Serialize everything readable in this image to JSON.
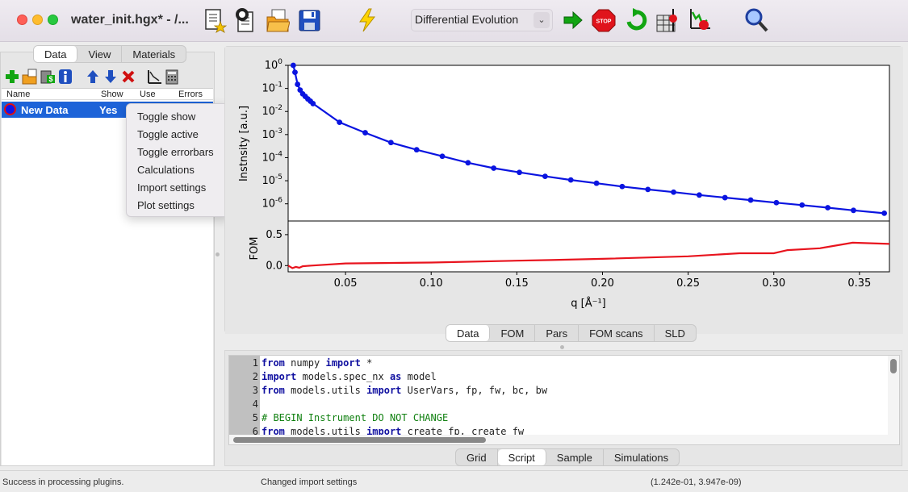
{
  "window": {
    "title": "water_init.hgx* - /..."
  },
  "toolbar": {
    "icons": [
      "new-model-icon",
      "open-model-icon",
      "open-folder-icon",
      "save-icon",
      "simulate-icon",
      "fit-start-icon",
      "stop-icon",
      "restart-fit-icon",
      "calculate-errorbars-icon",
      "scan-parameter-icon",
      "zoom-icon"
    ],
    "algorithm": {
      "selected": "Differential Evolution"
    }
  },
  "left_panel": {
    "tabs": [
      {
        "label": "Data",
        "active": true
      },
      {
        "label": "View"
      },
      {
        "label": "Materials"
      }
    ],
    "data_toolbar_icons": [
      "add-data-icon",
      "import-data-icon",
      "data-calculations-icon",
      "data-info-icon",
      "move-up-icon",
      "move-down-icon",
      "delete-data-icon",
      "plot-settings-icon",
      "calculator-icon"
    ],
    "columns": [
      "Name",
      "Show",
      "Use",
      "Errors"
    ],
    "rows": [
      {
        "name": "New Data",
        "show": "Yes",
        "color": "#1414e6",
        "edge": "#e01010"
      }
    ]
  },
  "context_menu": {
    "items": [
      "Toggle show",
      "Toggle active",
      "Toggle errorbars",
      "Calculations",
      "Import settings",
      "Plot settings"
    ]
  },
  "plot_tabs": [
    {
      "label": "Data",
      "active": true
    },
    {
      "label": "FOM"
    },
    {
      "label": "Pars"
    },
    {
      "label": "FOM scans"
    },
    {
      "label": "SLD"
    }
  ],
  "script": {
    "lines": [
      {
        "n": "1",
        "tokens": [
          [
            "kw",
            "from"
          ],
          [
            "t",
            " numpy "
          ],
          [
            "kw",
            "import"
          ],
          [
            "t",
            " *"
          ]
        ]
      },
      {
        "n": "2",
        "tokens": [
          [
            "kw",
            "import"
          ],
          [
            "t",
            " models.spec_nx "
          ],
          [
            "kw",
            "as"
          ],
          [
            "t",
            " model"
          ]
        ]
      },
      {
        "n": "3",
        "tokens": [
          [
            "kw",
            "from"
          ],
          [
            "t",
            " models.utils "
          ],
          [
            "kw",
            "import"
          ],
          [
            "t",
            " UserVars, fp, fw, bc, bw"
          ]
        ]
      },
      {
        "n": "4",
        "tokens": []
      },
      {
        "n": "5",
        "tokens": [
          [
            "cm",
            "# BEGIN Instrument DO NOT CHANGE"
          ]
        ]
      },
      {
        "n": "6",
        "tokens": [
          [
            "kw",
            "from"
          ],
          [
            "t",
            " models.utils "
          ],
          [
            "kw",
            "import"
          ],
          [
            "t",
            " create_fp, create_fw"
          ]
        ]
      }
    ]
  },
  "script_tabs": [
    {
      "label": "Grid"
    },
    {
      "label": "Script",
      "active": true
    },
    {
      "label": "Sample"
    },
    {
      "label": "Simulations"
    }
  ],
  "status": {
    "left": "Success in processing plugins.",
    "middle": "Changed import settings",
    "right": "(1.242e-01, 3.947e-09)"
  },
  "chart_data": [
    {
      "type": "line",
      "ylabel": "Instnsity [a.u.]",
      "yscale": "log",
      "ylim": [
        1.8e-07,
        1
      ],
      "xlim": [
        0.0165,
        0.3675
      ],
      "ytick_labels": [
        "10^0",
        "10^-1",
        "10^-2",
        "10^-3",
        "10^-4",
        "10^-5",
        "10^-6"
      ],
      "series": [
        {
          "color": "#0a14e0",
          "markers": true,
          "x": [
            0.0195,
            0.0205,
            0.022,
            0.0235,
            0.025,
            0.0265,
            0.028,
            0.0295,
            0.031,
            0.0465,
            0.0615,
            0.0765,
            0.0915,
            0.1065,
            0.1215,
            0.1365,
            0.1515,
            0.1665,
            0.1815,
            0.1965,
            0.2115,
            0.2265,
            0.2415,
            0.2565,
            0.2715,
            0.2865,
            0.3015,
            0.3165,
            0.3315,
            0.3465,
            0.3645
          ],
          "y": [
            1.0,
            0.5,
            0.15,
            0.085,
            0.058,
            0.045,
            0.035,
            0.028,
            0.022,
            0.0034,
            0.0012,
            0.00045,
            0.00022,
            0.000115,
            6e-05,
            3.5e-05,
            2.3e-05,
            1.55e-05,
            1.08e-05,
            7.8e-06,
            5.6e-06,
            4.2e-06,
            3.2e-06,
            2.4e-06,
            1.85e-06,
            1.45e-06,
            1.12e-06,
            8.8e-07,
            6.8e-07,
            5.2e-07,
            3.9e-07
          ]
        }
      ]
    },
    {
      "type": "line",
      "xlabel": "q [Å⁻¹]",
      "ylabel": "FOM",
      "xlim": [
        0.0165,
        0.3675
      ],
      "ylim": [
        -0.1,
        0.72
      ],
      "xtick_labels": [
        "0.05",
        "0.10",
        "0.15",
        "0.20",
        "0.25",
        "0.30",
        "0.35"
      ],
      "ytick_labels": [
        "0.0",
        "0.5"
      ],
      "series": [
        {
          "color": "#e8141e",
          "x": [
            0.0165,
            0.019,
            0.021,
            0.023,
            0.025,
            0.03,
            0.05,
            0.1,
            0.15,
            0.17,
            0.2,
            0.25,
            0.28,
            0.3,
            0.308,
            0.327,
            0.346,
            0.3675
          ],
          "y": [
            0.0,
            -0.04,
            -0.02,
            -0.035,
            -0.01,
            0.0,
            0.035,
            0.05,
            0.08,
            0.09,
            0.11,
            0.15,
            0.2,
            0.2,
            0.25,
            0.28,
            0.37,
            0.35
          ]
        }
      ]
    }
  ]
}
